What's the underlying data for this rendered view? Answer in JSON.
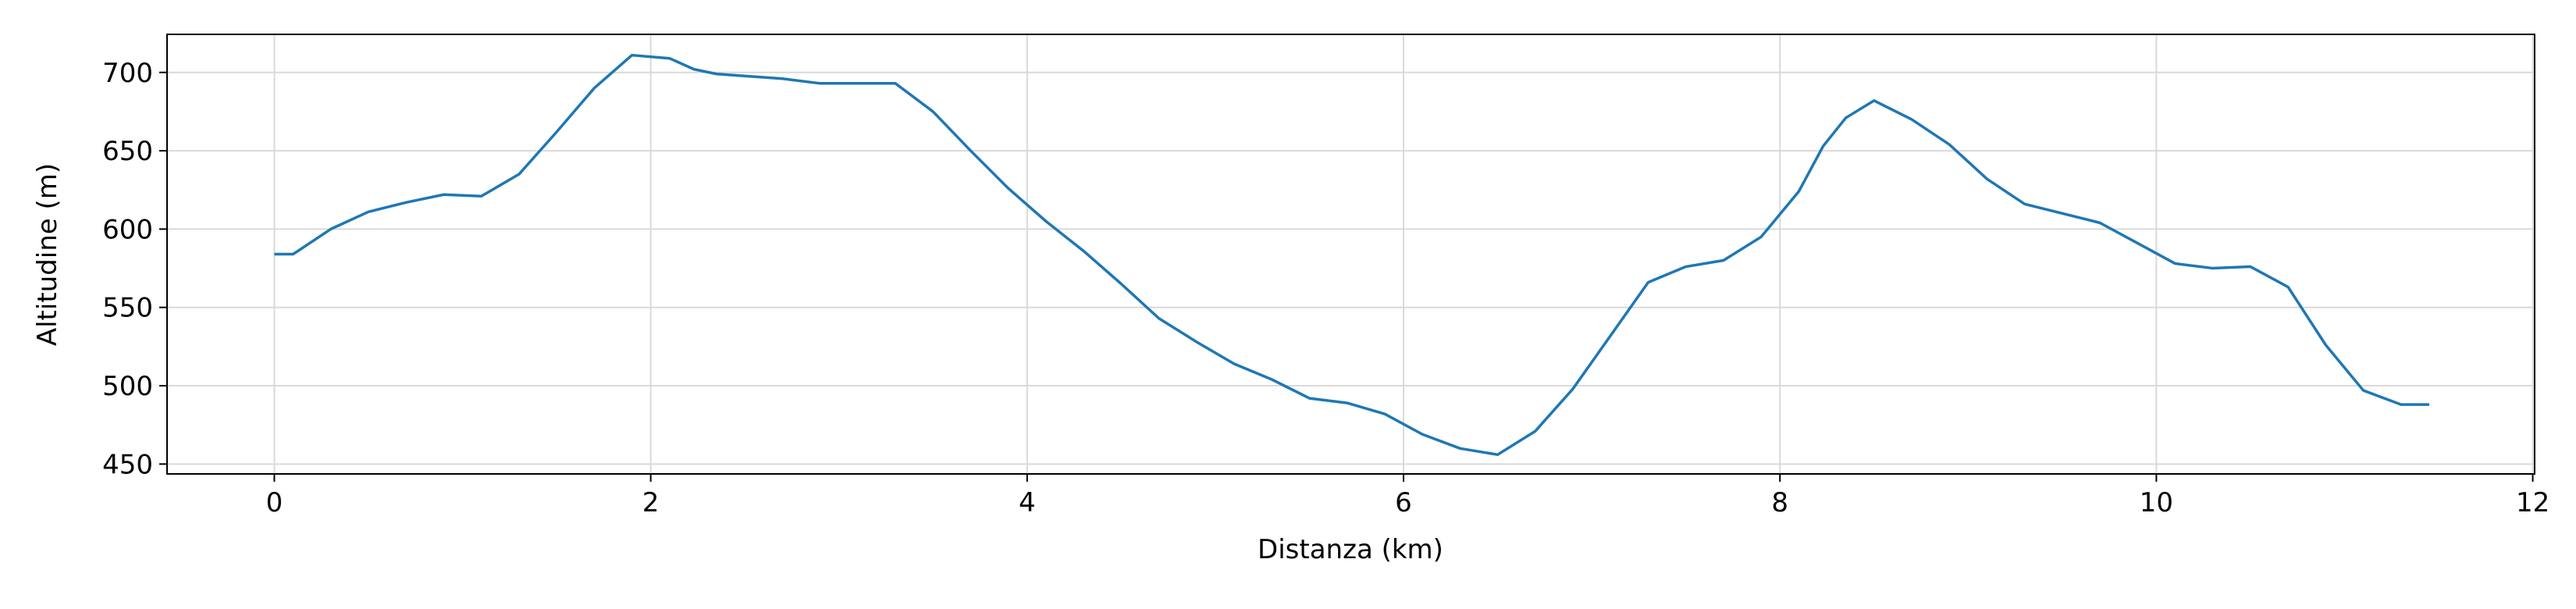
{
  "chart_data": {
    "type": "line",
    "xlabel": "Distanza (km)",
    "ylabel": "Altitudine (m)",
    "x": [
      0,
      0.1,
      0.3,
      0.5,
      0.7,
      0.9,
      1.1,
      1.3,
      1.5,
      1.7,
      1.9,
      2.1,
      2.23,
      2.35,
      2.7,
      2.9,
      3.1,
      3.3,
      3.5,
      3.7,
      3.9,
      4.1,
      4.3,
      4.5,
      4.7,
      4.9,
      5.1,
      5.3,
      5.5,
      5.7,
      5.9,
      6.1,
      6.3,
      6.5,
      6.7,
      6.9,
      7.1,
      7.3,
      7.5,
      7.7,
      7.9,
      8.1,
      8.23,
      8.35,
      8.5,
      8.7,
      8.9,
      9.1,
      9.3,
      9.5,
      9.7,
      9.9,
      10.1,
      10.3,
      10.5,
      10.7,
      10.9,
      11.1,
      11.3,
      11.45
    ],
    "series": [
      {
        "name": "Altitudine",
        "color": "#1f77b4",
        "values": [
          584,
          584,
          600,
          611,
          617,
          622,
          621,
          635,
          662,
          690,
          711,
          709,
          702,
          699,
          696,
          693,
          693,
          693,
          675,
          650,
          626,
          605,
          586,
          565,
          543,
          528,
          514,
          504,
          492,
          489,
          482,
          469,
          460,
          456,
          471,
          498,
          532,
          566,
          576,
          580,
          595,
          624,
          653,
          671,
          682,
          670,
          654,
          632,
          616,
          610,
          604,
          591,
          578,
          575,
          576,
          563,
          526,
          497,
          488,
          488
        ]
      }
    ],
    "xlim": [
      -0.57,
      12.01
    ],
    "ylim": [
      443.7,
      724.3
    ],
    "xticks": [
      0,
      2,
      4,
      6,
      8,
      10,
      12
    ],
    "yticks": [
      450,
      500,
      550,
      600,
      650,
      700
    ],
    "grid": true
  }
}
